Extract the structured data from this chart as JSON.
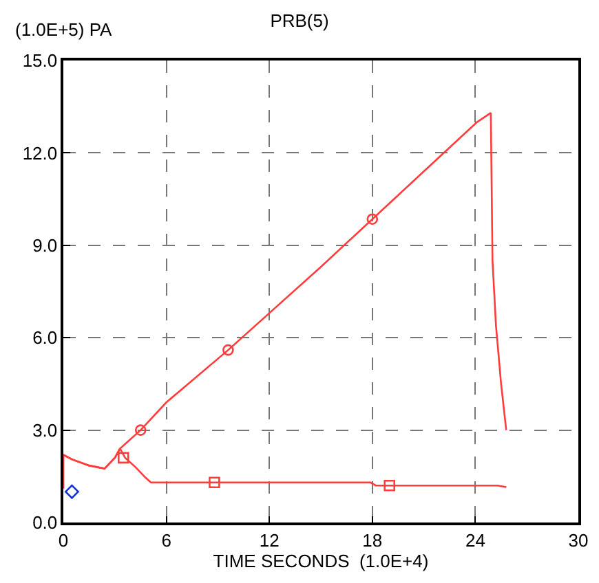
{
  "chart_data": {
    "type": "line",
    "title": "PRB(5)",
    "xlabel": "TIME SECONDS  (1.0E+4)",
    "ylabel": "(1.0E+5) PA",
    "xlim": [
      0,
      30
    ],
    "xticks": [
      0,
      6,
      12,
      18,
      24,
      30
    ],
    "ylim": [
      0,
      15
    ],
    "yticks": [
      {
        "value": 0,
        "label": "0.0"
      },
      {
        "value": 3,
        "label": "3.0"
      },
      {
        "value": 6,
        "label": "6.0"
      },
      {
        "value": 9,
        "label": "9.0"
      },
      {
        "value": 12,
        "label": "12.0"
      },
      {
        "value": 15,
        "label": "15.0"
      }
    ],
    "grid": true,
    "marker": "none",
    "line_style": "solid",
    "series": [
      {
        "color": "#ff3b3b",
        "x": [
          0,
          0,
          0.5,
          1.5,
          2.4,
          3.0,
          3.3,
          3.6,
          4.2,
          4.8,
          5.1,
          8,
          12,
          17.9,
          18.2,
          18.5,
          22,
          25.3,
          25.8
        ],
        "values": [
          1.1,
          2.2,
          2.05,
          1.85,
          1.75,
          2.1,
          2.4,
          2.1,
          1.8,
          1.45,
          1.3,
          1.3,
          1.3,
          1.3,
          1.2,
          1.2,
          1.2,
          1.2,
          1.15
        ]
      },
      {
        "color": "#ff3b3b",
        "x": [
          0,
          0.5,
          1.5,
          2.4,
          3.0,
          3.3,
          4.5,
          6,
          9.6,
          12,
          15,
          18,
          21,
          24.1,
          24.9,
          25.0,
          25.2,
          25.5,
          25.8
        ],
        "values": [
          2.2,
          2.05,
          1.85,
          1.75,
          2.1,
          2.4,
          3.0,
          3.9,
          5.6,
          6.8,
          8.3,
          9.85,
          11.4,
          13.0,
          13.3,
          8.5,
          6.4,
          4.5,
          3.0
        ]
      },
      {
        "type": "scatter",
        "marker": "square",
        "color": "#ff3b3b",
        "x": [
          3.5,
          8.8,
          19
        ],
        "values": [
          2.1,
          1.3,
          1.2
        ]
      },
      {
        "type": "scatter",
        "marker": "circle",
        "color": "#ff3b3b",
        "x": [
          4.5,
          9.6,
          18
        ],
        "values": [
          3.0,
          5.6,
          9.85
        ]
      },
      {
        "type": "scatter",
        "marker": "diamond",
        "color": "#1030e0",
        "x": [
          0.5
        ],
        "values": [
          1.0
        ]
      }
    ]
  }
}
